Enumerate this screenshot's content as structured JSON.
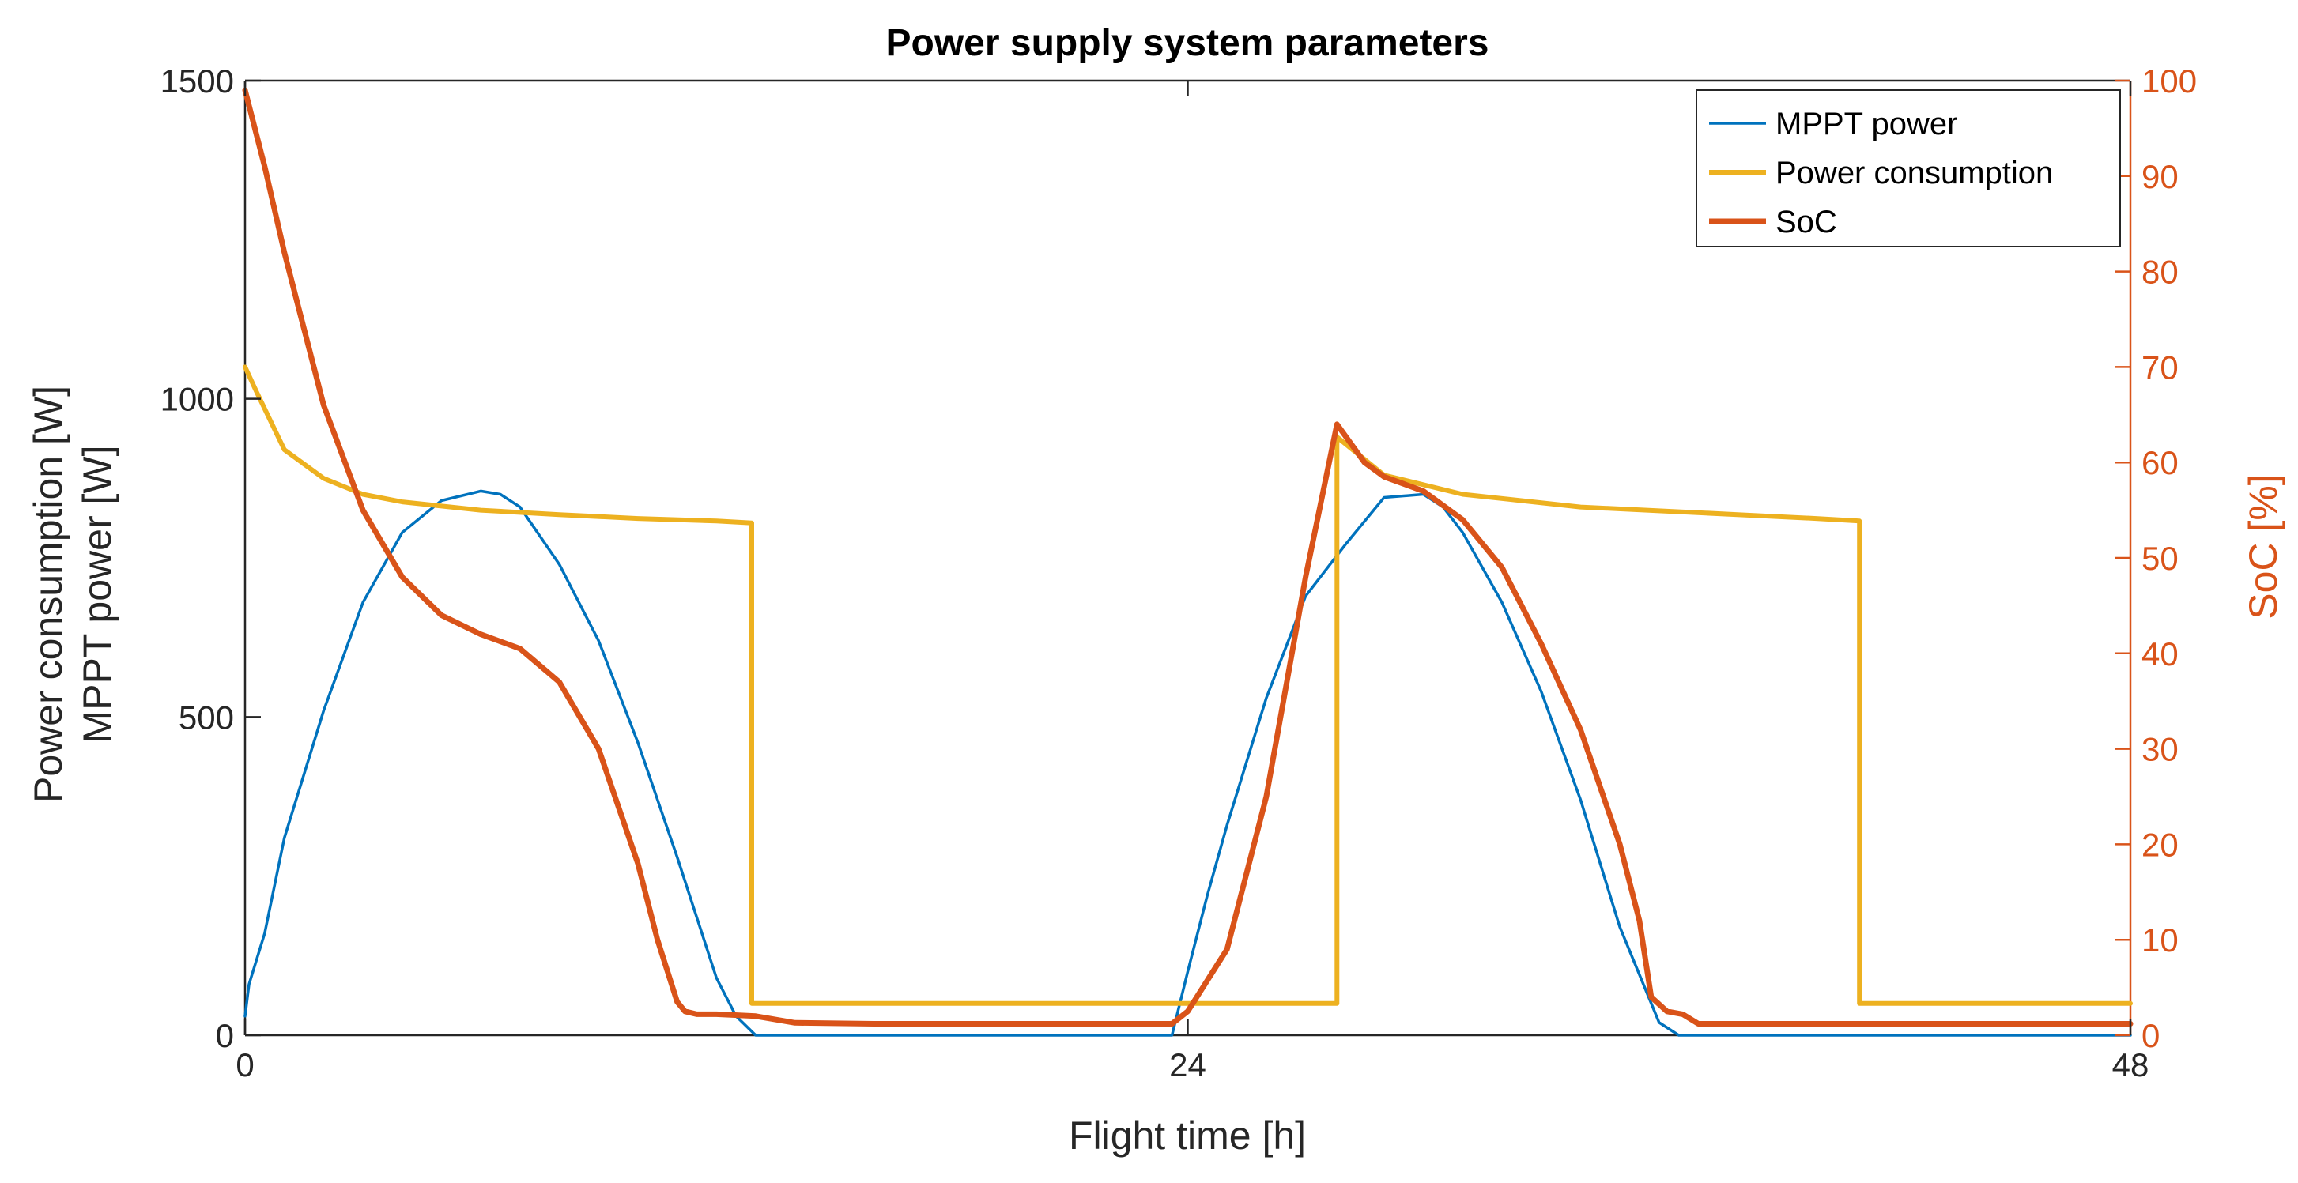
{
  "chart_data": {
    "type": "line",
    "title": "Power supply system parameters",
    "xlabel": "Flight time [h]",
    "ylabel_left": [
      "Power consumption [W]",
      "MPPT power [W]"
    ],
    "ylabel_right": "SoC [%]",
    "xlim": [
      0,
      48
    ],
    "ylim_left": [
      0,
      1500
    ],
    "ylim_right": [
      0,
      100
    ],
    "xticks": [
      "0",
      "24",
      "48"
    ],
    "yticks_left": [
      "0",
      "500",
      "1000",
      "1500"
    ],
    "yticks_right": [
      "0",
      "10",
      "20",
      "30",
      "40",
      "50",
      "60",
      "70",
      "80",
      "90",
      "100"
    ],
    "grid": false,
    "legend_position": "top-right",
    "series": [
      {
        "name": "MPPT power",
        "axis": "left",
        "color": "#0072bd",
        "x": [
          0,
          0.1,
          0.5,
          1,
          2,
          3,
          4,
          5,
          6,
          6.5,
          7,
          8,
          9,
          10,
          11,
          12,
          12.5,
          13,
          14,
          15,
          16,
          17,
          18,
          19,
          20,
          21,
          22,
          23,
          23.6,
          24,
          24.5,
          25,
          26,
          27,
          28,
          29,
          30,
          30.5,
          31,
          32,
          33,
          34,
          35,
          36,
          36.5,
          37,
          38,
          39,
          40,
          41,
          42,
          43,
          44,
          45,
          46,
          47,
          48
        ],
        "values": [
          30,
          80,
          160,
          310,
          510,
          680,
          790,
          840,
          855,
          850,
          830,
          740,
          620,
          460,
          280,
          90,
          30,
          0,
          0,
          0,
          0,
          0,
          0,
          0,
          0,
          0,
          0,
          0,
          0,
          100,
          220,
          330,
          530,
          690,
          770,
          845,
          850,
          830,
          790,
          680,
          540,
          370,
          170,
          20,
          0,
          0,
          0,
          0,
          0,
          0,
          0,
          0,
          0,
          0,
          0,
          0,
          0
        ]
      },
      {
        "name": "Power consumption",
        "axis": "left",
        "color": "#edb120",
        "x": [
          0,
          0.3,
          1,
          2,
          3,
          4,
          6,
          8,
          10,
          12,
          12.9,
          12.9,
          14,
          20,
          24,
          27.8,
          27.8,
          29,
          31,
          34,
          38,
          40,
          41.1,
          41.1,
          44,
          48
        ],
        "values": [
          1050,
          1010,
          920,
          875,
          850,
          838,
          825,
          818,
          812,
          808,
          805,
          50,
          50,
          50,
          50,
          50,
          940,
          880,
          850,
          830,
          818,
          812,
          808,
          50,
          50,
          50
        ]
      },
      {
        "name": "SoC",
        "axis": "right",
        "color": "#d95319",
        "x": [
          0,
          0.5,
          1,
          2,
          3,
          4,
          5,
          6,
          7,
          8,
          9,
          10,
          10.5,
          11,
          11.2,
          11.5,
          12,
          13,
          14,
          16,
          20,
          23,
          23.6,
          24,
          25,
          26,
          27,
          27.8,
          28.5,
          29,
          30,
          31,
          32,
          33,
          34,
          35,
          35.5,
          35.8,
          36.2,
          36.6,
          37,
          40,
          44,
          48
        ],
        "values": [
          99,
          91,
          82,
          66,
          55,
          48,
          44,
          42,
          40.5,
          37,
          30,
          18,
          10,
          3.5,
          2.5,
          2.2,
          2.2,
          2,
          1.3,
          1.2,
          1.2,
          1.2,
          1.2,
          2.5,
          9,
          25,
          48,
          64,
          60,
          58.5,
          57,
          54,
          49,
          41,
          32,
          20,
          12,
          4,
          2.5,
          2.2,
          1.2,
          1.2,
          1.2,
          1.2
        ]
      }
    ]
  },
  "colors": {
    "mppt": "#0072bd",
    "consumption": "#edb120",
    "soc": "#d95319",
    "axis_left": "#262626",
    "axis_right": "#d95319"
  }
}
